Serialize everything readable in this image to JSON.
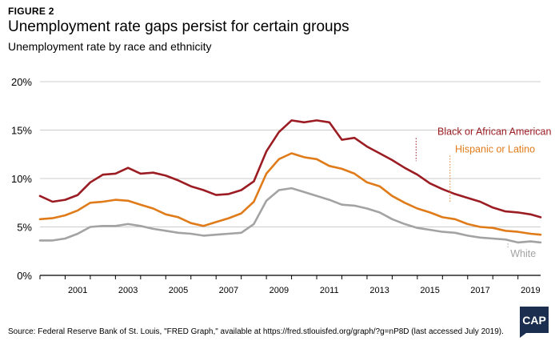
{
  "figure_label": "FIGURE 2",
  "logo_text": "CAP",
  "source_text": "Source: Federal Reserve Bank of St. Louis, \"FRED Graph,\" available at https://fred.stlouisfed.org/graph/?g=nP8D (last accessed July 2019).",
  "colors": {
    "black_or_african_american": "#9b1c23",
    "hispanic_or_latino": "#e07b1a",
    "white": "#a3a3a3",
    "grid": "#cccccc",
    "logo_bg": "#1b2e4f"
  },
  "chart_data": {
    "type": "line",
    "title": "Unemployment rate gaps persist for certain groups",
    "subtitle": "Unemployment rate by race and ethnicity",
    "xlabel": "",
    "ylabel": "",
    "xlim": [
      2000.0,
      2019.9
    ],
    "ylim": [
      0,
      20
    ],
    "yticks": [
      "0%",
      "5%",
      "10%",
      "15%",
      "20%"
    ],
    "xticks": [
      "2001",
      "2003",
      "2005",
      "2007",
      "2009",
      "2011",
      "2013",
      "2015",
      "2017",
      "2019"
    ],
    "grid": "horizontal",
    "legend": "direct labels",
    "series": [
      {
        "name": "Black or African American",
        "color": "#9b1c23",
        "x": [
          2000.0,
          2000.5,
          2001.0,
          2001.5,
          2002.0,
          2002.5,
          2003.0,
          2003.5,
          2004.0,
          2004.5,
          2005.0,
          2005.5,
          2006.0,
          2006.5,
          2007.0,
          2007.5,
          2008.0,
          2008.5,
          2009.0,
          2009.5,
          2010.0,
          2010.5,
          2011.0,
          2011.5,
          2012.0,
          2012.5,
          2013.0,
          2013.5,
          2014.0,
          2014.5,
          2015.0,
          2015.5,
          2016.0,
          2016.5,
          2017.0,
          2017.5,
          2018.0,
          2018.5,
          2019.0,
          2019.5,
          2019.9
        ],
        "values": [
          8.2,
          7.6,
          7.8,
          8.3,
          9.6,
          10.4,
          10.5,
          11.1,
          10.5,
          10.6,
          10.3,
          9.8,
          9.2,
          8.8,
          8.3,
          8.4,
          8.8,
          9.7,
          12.8,
          14.8,
          16.0,
          15.8,
          16.0,
          15.8,
          14.0,
          14.2,
          13.3,
          12.6,
          11.9,
          11.1,
          10.4,
          9.5,
          8.9,
          8.4,
          8.0,
          7.6,
          7.0,
          6.6,
          6.5,
          6.3,
          6.0
        ]
      },
      {
        "name": "Hispanic or Latino",
        "color": "#e07b1a",
        "x": [
          2000.0,
          2000.5,
          2001.0,
          2001.5,
          2002.0,
          2002.5,
          2003.0,
          2003.5,
          2004.0,
          2004.5,
          2005.0,
          2005.5,
          2006.0,
          2006.5,
          2007.0,
          2007.5,
          2008.0,
          2008.5,
          2009.0,
          2009.5,
          2010.0,
          2010.5,
          2011.0,
          2011.5,
          2012.0,
          2012.5,
          2013.0,
          2013.5,
          2014.0,
          2014.5,
          2015.0,
          2015.5,
          2016.0,
          2016.5,
          2017.0,
          2017.5,
          2018.0,
          2018.5,
          2019.0,
          2019.5,
          2019.9
        ],
        "values": [
          5.8,
          5.9,
          6.2,
          6.7,
          7.5,
          7.6,
          7.8,
          7.7,
          7.3,
          6.9,
          6.3,
          6.0,
          5.4,
          5.1,
          5.5,
          5.9,
          6.4,
          7.6,
          10.5,
          12.0,
          12.6,
          12.2,
          12.0,
          11.3,
          11.0,
          10.5,
          9.6,
          9.2,
          8.2,
          7.5,
          6.9,
          6.5,
          6.0,
          5.8,
          5.3,
          5.0,
          4.9,
          4.6,
          4.5,
          4.3,
          4.2
        ]
      },
      {
        "name": "White",
        "color": "#a3a3a3",
        "x": [
          2000.0,
          2000.5,
          2001.0,
          2001.5,
          2002.0,
          2002.5,
          2003.0,
          2003.5,
          2004.0,
          2004.5,
          2005.0,
          2005.5,
          2006.0,
          2006.5,
          2007.0,
          2007.5,
          2008.0,
          2008.5,
          2009.0,
          2009.5,
          2010.0,
          2010.5,
          2011.0,
          2011.5,
          2012.0,
          2012.5,
          2013.0,
          2013.5,
          2014.0,
          2014.5,
          2015.0,
          2015.5,
          2016.0,
          2016.5,
          2017.0,
          2017.5,
          2018.0,
          2018.5,
          2019.0,
          2019.5,
          2019.9
        ],
        "values": [
          3.6,
          3.6,
          3.8,
          4.3,
          5.0,
          5.1,
          5.1,
          5.3,
          5.1,
          4.8,
          4.6,
          4.4,
          4.3,
          4.1,
          4.2,
          4.3,
          4.4,
          5.3,
          7.7,
          8.8,
          9.0,
          8.6,
          8.2,
          7.8,
          7.3,
          7.2,
          6.9,
          6.5,
          5.8,
          5.3,
          4.9,
          4.7,
          4.5,
          4.4,
          4.1,
          3.9,
          3.8,
          3.7,
          3.4,
          3.5,
          3.4
        ]
      }
    ]
  }
}
